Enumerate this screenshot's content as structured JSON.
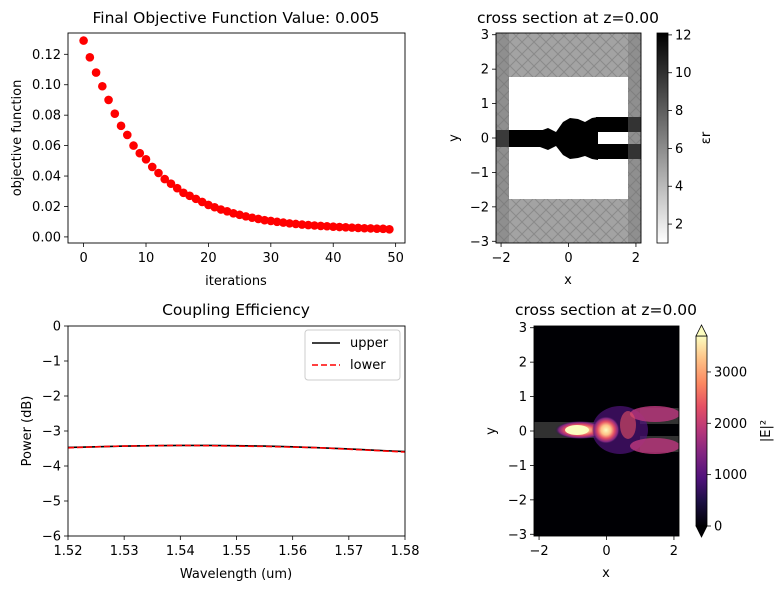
{
  "chart_data": [
    {
      "type": "scatter",
      "title": "Final Objective Function Value: 0.005",
      "xlabel": "iterations",
      "ylabel": "objective function",
      "xlim": [
        -2.5,
        51.5
      ],
      "ylim": [
        -0.004,
        0.134
      ],
      "xticks": [
        "0",
        "10",
        "20",
        "30",
        "40",
        "50"
      ],
      "yticks": [
        "0.00",
        "0.02",
        "0.04",
        "0.06",
        "0.08",
        "0.10",
        "0.12"
      ],
      "marker_color": "#ff0000",
      "points": [
        [
          0,
          0.129
        ],
        [
          1,
          0.118
        ],
        [
          2,
          0.108
        ],
        [
          3,
          0.099
        ],
        [
          4,
          0.09
        ],
        [
          5,
          0.081
        ],
        [
          6,
          0.073
        ],
        [
          7,
          0.067
        ],
        [
          8,
          0.06
        ],
        [
          9,
          0.055
        ],
        [
          10,
          0.051
        ],
        [
          11,
          0.046
        ],
        [
          12,
          0.042
        ],
        [
          13,
          0.038
        ],
        [
          14,
          0.035
        ],
        [
          15,
          0.032
        ],
        [
          16,
          0.029
        ],
        [
          17,
          0.027
        ],
        [
          18,
          0.025
        ],
        [
          19,
          0.023
        ],
        [
          20,
          0.021
        ],
        [
          21,
          0.0195
        ],
        [
          22,
          0.018
        ],
        [
          23,
          0.0168
        ],
        [
          24,
          0.0155
        ],
        [
          25,
          0.0145
        ],
        [
          26,
          0.0135
        ],
        [
          27,
          0.0126
        ],
        [
          28,
          0.0118
        ],
        [
          29,
          0.011
        ],
        [
          30,
          0.0105
        ],
        [
          31,
          0.0099
        ],
        [
          32,
          0.0094
        ],
        [
          33,
          0.0089
        ],
        [
          34,
          0.0085
        ],
        [
          35,
          0.0081
        ],
        [
          36,
          0.0078
        ],
        [
          37,
          0.0075
        ],
        [
          38,
          0.0072
        ],
        [
          39,
          0.007
        ],
        [
          40,
          0.0067
        ],
        [
          41,
          0.0065
        ],
        [
          42,
          0.0063
        ],
        [
          43,
          0.0061
        ],
        [
          44,
          0.0059
        ],
        [
          45,
          0.0057
        ],
        [
          46,
          0.0056
        ],
        [
          47,
          0.0054
        ],
        [
          48,
          0.0053
        ],
        [
          49,
          0.005
        ]
      ]
    },
    {
      "type": "heatmap",
      "title": "cross section at z=0.00",
      "xlabel": "x",
      "ylabel": "y",
      "xlim": [
        -2.15,
        2.15
      ],
      "ylim": [
        -3.05,
        3.05
      ],
      "xticks": [
        "−2",
        "0",
        "2"
      ],
      "yticks": [
        "−3",
        "−2",
        "−1",
        "0",
        "1",
        "2",
        "3"
      ],
      "colorbar_label": "εr",
      "colorbar_range": [
        1,
        12.1
      ],
      "colorbar_ticks": [
        "2",
        "4",
        "6",
        "8",
        "10",
        "12"
      ],
      "colormap": "gray_r"
    },
    {
      "type": "line",
      "title": "Coupling Efficiency",
      "xlabel": "Wavelength (um)",
      "ylabel": "Power (dB)",
      "xlim": [
        1.52,
        1.58
      ],
      "ylim": [
        -6,
        0
      ],
      "xticks": [
        "1.52",
        "1.53",
        "1.54",
        "1.55",
        "1.56",
        "1.57",
        "1.58"
      ],
      "yticks": [
        "−6",
        "−5",
        "−4",
        "−3",
        "−2",
        "−1",
        "0"
      ],
      "legend_position": "top-right",
      "x": [
        1.52,
        1.525,
        1.53,
        1.535,
        1.54,
        1.545,
        1.55,
        1.555,
        1.56,
        1.565,
        1.57,
        1.575,
        1.58
      ],
      "series": [
        {
          "name": "upper",
          "color": "#000000",
          "dash": "solid",
          "values": [
            -3.47,
            -3.45,
            -3.43,
            -3.42,
            -3.41,
            -3.41,
            -3.42,
            -3.43,
            -3.45,
            -3.48,
            -3.51,
            -3.55,
            -3.59
          ]
        },
        {
          "name": "lower",
          "color": "#ff0000",
          "dash": "dashed",
          "values": [
            -3.48,
            -3.45,
            -3.43,
            -3.42,
            -3.41,
            -3.42,
            -3.43,
            -3.44,
            -3.46,
            -3.48,
            -3.52,
            -3.56,
            -3.6
          ]
        }
      ]
    },
    {
      "type": "heatmap",
      "title": "cross section at z=0.00",
      "xlabel": "x",
      "ylabel": "y",
      "xlim": [
        -2.15,
        2.15
      ],
      "ylim": [
        -3.05,
        3.05
      ],
      "xticks": [
        "−2",
        "0",
        "2"
      ],
      "yticks": [
        "−3",
        "−2",
        "−1",
        "0",
        "1",
        "2",
        "3"
      ],
      "colorbar_label": "|E|²",
      "colorbar_range": [
        0,
        3700
      ],
      "colorbar_ticks": [
        "0",
        "1000",
        "2000",
        "3000"
      ],
      "colormap": "magma"
    }
  ]
}
